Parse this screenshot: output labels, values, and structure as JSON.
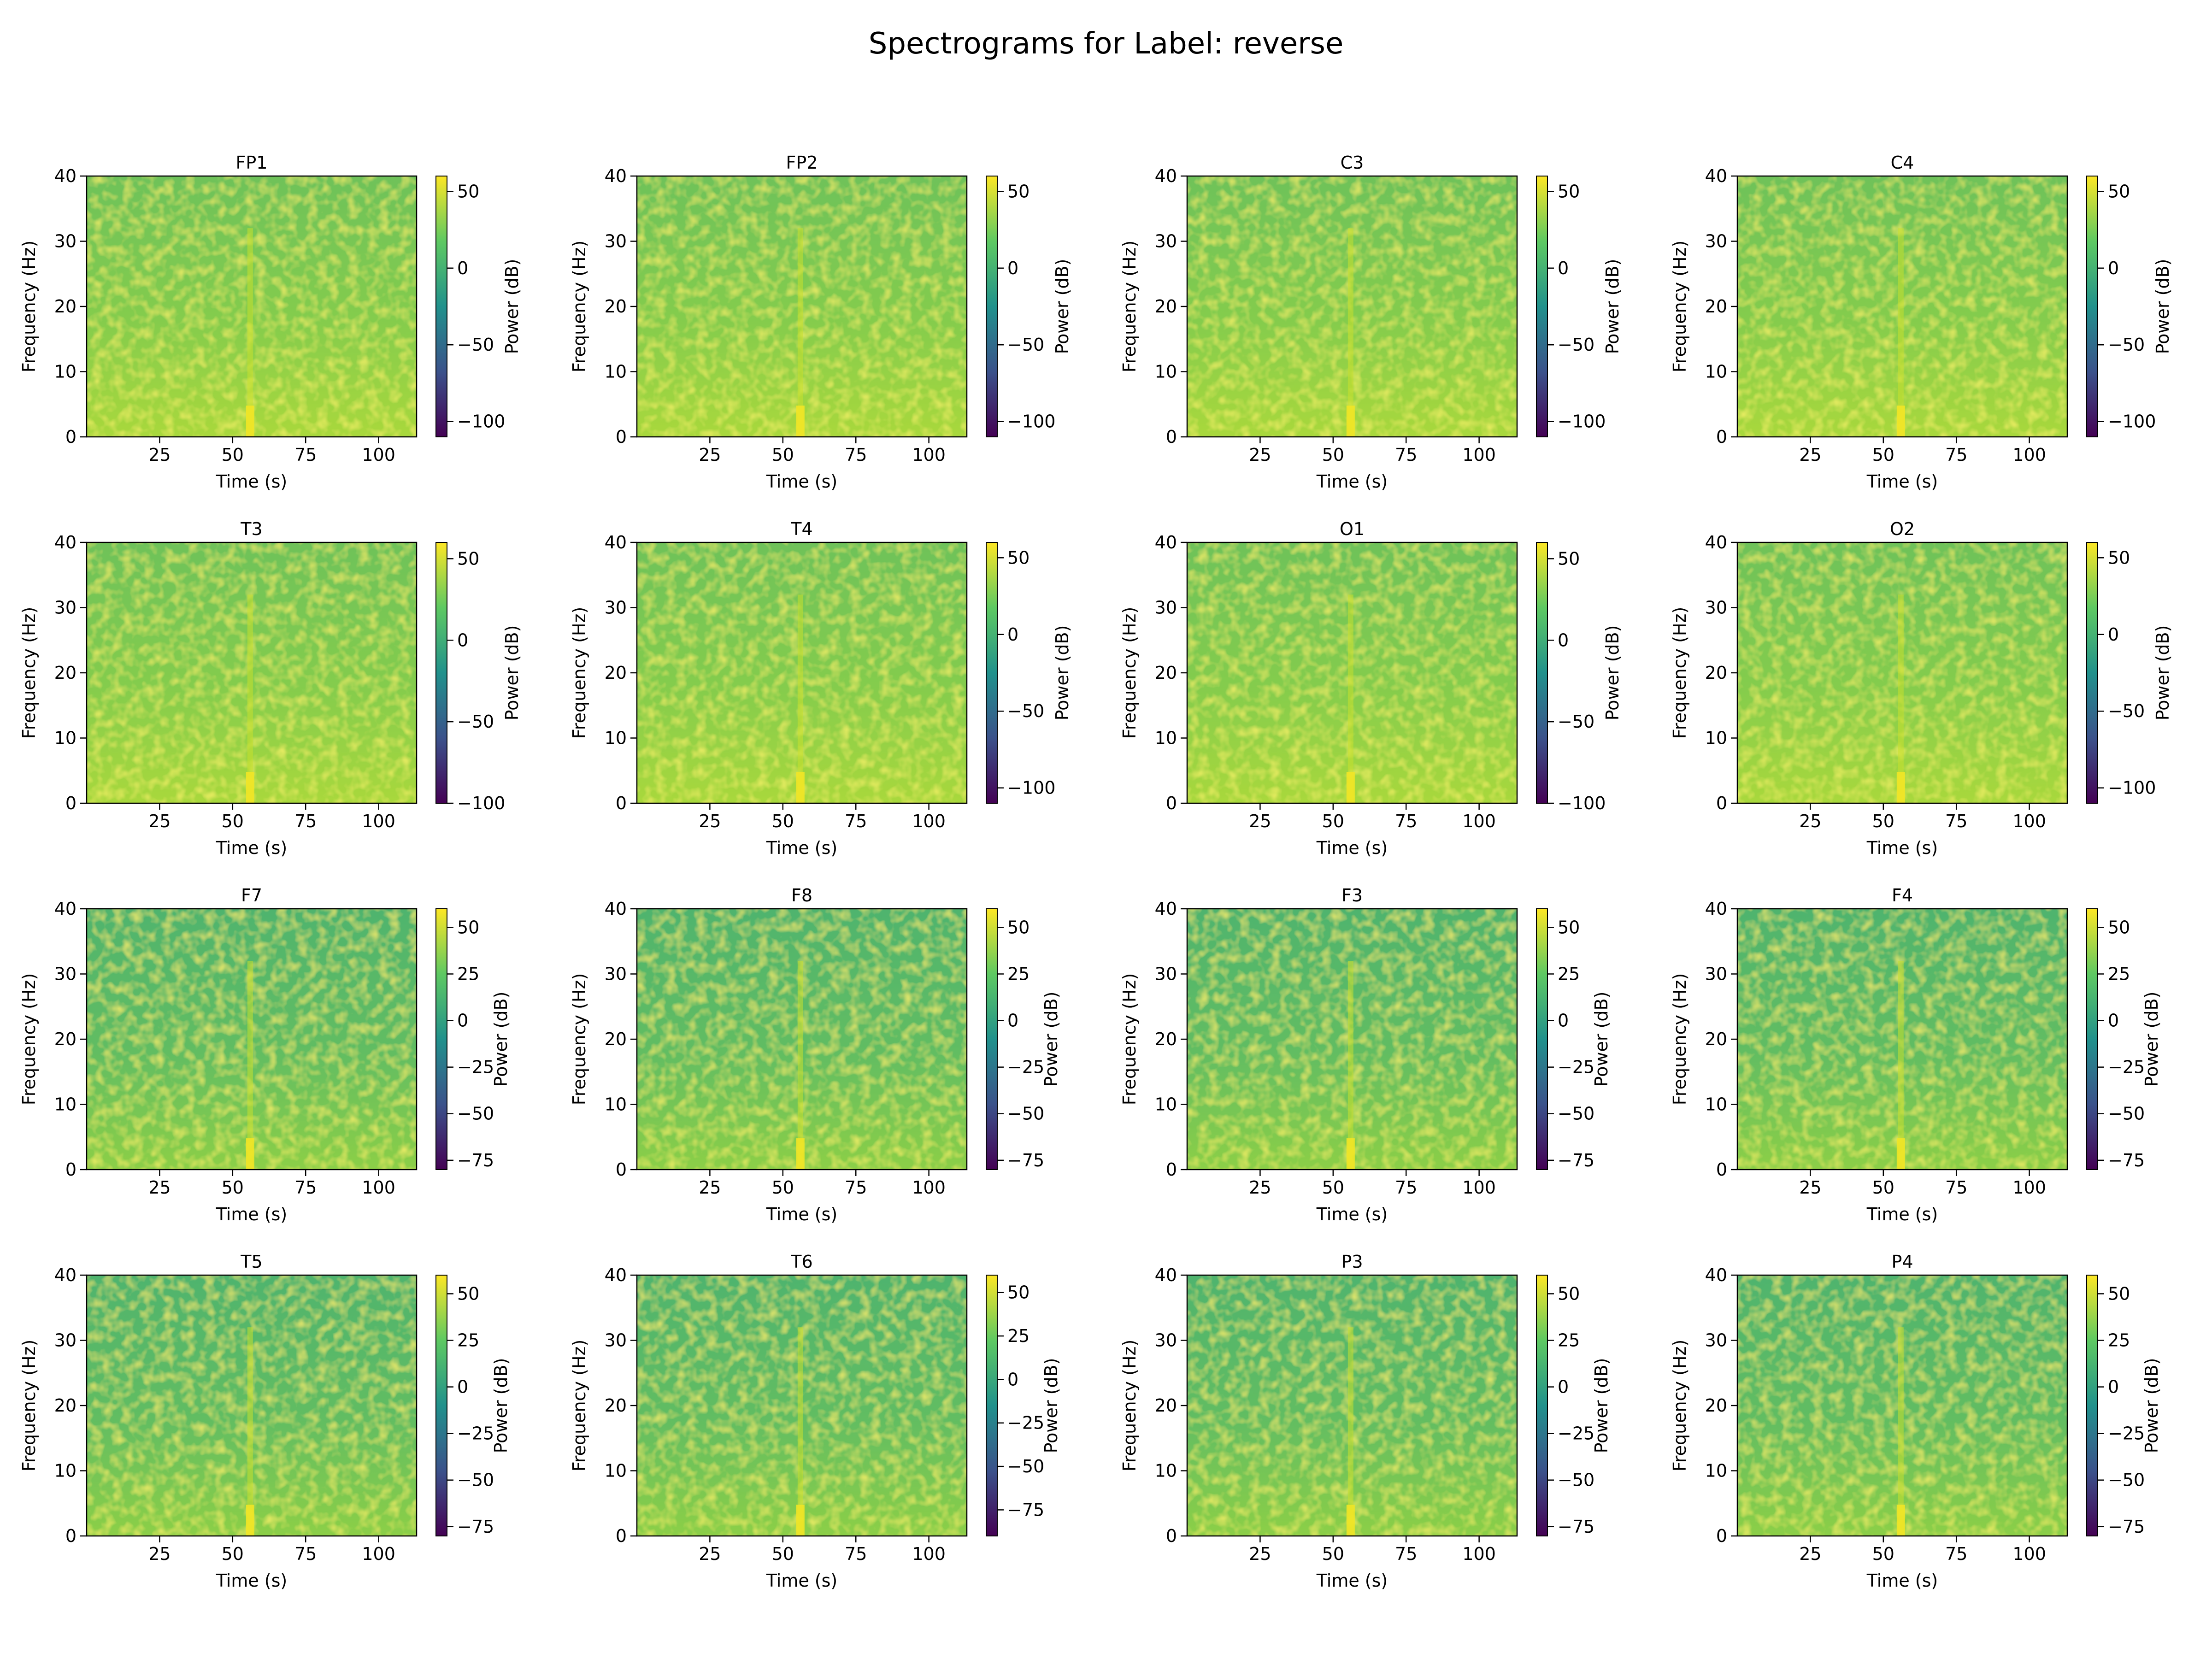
{
  "figure": {
    "title": "Spectrograms for Label: reverse"
  },
  "colormap": {
    "name": "viridis",
    "stops": [
      "#440154",
      "#3b528b",
      "#21918c",
      "#5ec962",
      "#fde725"
    ]
  },
  "chart_data": [
    {
      "type": "heatmap",
      "title": "FP1",
      "xlabel": "Time (s)",
      "ylabel": "Frequency (Hz)",
      "colorbar_label": "Power (dB)",
      "xlim": [
        0,
        113
      ],
      "ylim": [
        0,
        40
      ],
      "xticks": [
        25,
        50,
        75,
        100
      ],
      "yticks": [
        0,
        10,
        20,
        30,
        40
      ],
      "clim": [
        -110,
        60
      ],
      "colorbar_ticks": [
        50,
        0,
        -50,
        -100
      ],
      "feature": {
        "time": 56,
        "description": "bright vertical line"
      }
    },
    {
      "type": "heatmap",
      "title": "FP2",
      "xlabel": "Time (s)",
      "ylabel": "Frequency (Hz)",
      "colorbar_label": "Power (dB)",
      "xlim": [
        0,
        113
      ],
      "ylim": [
        0,
        40
      ],
      "xticks": [
        25,
        50,
        75,
        100
      ],
      "yticks": [
        0,
        10,
        20,
        30,
        40
      ],
      "clim": [
        -110,
        60
      ],
      "colorbar_ticks": [
        50,
        0,
        -50,
        -100
      ],
      "feature": {
        "time": 56,
        "description": "bright vertical line"
      }
    },
    {
      "type": "heatmap",
      "title": "C3",
      "xlabel": "Time (s)",
      "ylabel": "Frequency (Hz)",
      "colorbar_label": "Power (dB)",
      "xlim": [
        0,
        113
      ],
      "ylim": [
        0,
        40
      ],
      "xticks": [
        25,
        50,
        75,
        100
      ],
      "yticks": [
        0,
        10,
        20,
        30,
        40
      ],
      "clim": [
        -110,
        60
      ],
      "colorbar_ticks": [
        50,
        0,
        -50,
        -100
      ],
      "feature": {
        "time": 56,
        "description": "bright vertical line"
      }
    },
    {
      "type": "heatmap",
      "title": "C4",
      "xlabel": "Time (s)",
      "ylabel": "Frequency (Hz)",
      "colorbar_label": "Power (dB)",
      "xlim": [
        0,
        113
      ],
      "ylim": [
        0,
        40
      ],
      "xticks": [
        25,
        50,
        75,
        100
      ],
      "yticks": [
        0,
        10,
        20,
        30,
        40
      ],
      "clim": [
        -110,
        60
      ],
      "colorbar_ticks": [
        50,
        0,
        -50,
        -100
      ],
      "feature": {
        "time": 56,
        "description": "bright vertical line"
      }
    },
    {
      "type": "heatmap",
      "title": "T3",
      "xlabel": "Time (s)",
      "ylabel": "Frequency (Hz)",
      "colorbar_label": "Power (dB)",
      "xlim": [
        0,
        113
      ],
      "ylim": [
        0,
        40
      ],
      "xticks": [
        25,
        50,
        75,
        100
      ],
      "yticks": [
        0,
        10,
        20,
        30,
        40
      ],
      "clim": [
        -100,
        60
      ],
      "colorbar_ticks": [
        50,
        0,
        -50,
        -100
      ],
      "feature": {
        "time": 56,
        "description": "bright vertical line"
      }
    },
    {
      "type": "heatmap",
      "title": "T4",
      "xlabel": "Time (s)",
      "ylabel": "Frequency (Hz)",
      "colorbar_label": "Power (dB)",
      "xlim": [
        0,
        113
      ],
      "ylim": [
        0,
        40
      ],
      "xticks": [
        25,
        50,
        75,
        100
      ],
      "yticks": [
        0,
        10,
        20,
        30,
        40
      ],
      "clim": [
        -110,
        60
      ],
      "colorbar_ticks": [
        50,
        0,
        -50,
        -100
      ],
      "feature": {
        "time": 56,
        "description": "bright vertical line"
      }
    },
    {
      "type": "heatmap",
      "title": "O1",
      "xlabel": "Time (s)",
      "ylabel": "Frequency (Hz)",
      "colorbar_label": "Power (dB)",
      "xlim": [
        0,
        113
      ],
      "ylim": [
        0,
        40
      ],
      "xticks": [
        25,
        50,
        75,
        100
      ],
      "yticks": [
        0,
        10,
        20,
        30,
        40
      ],
      "clim": [
        -100,
        60
      ],
      "colorbar_ticks": [
        50,
        0,
        -50,
        -100
      ],
      "feature": {
        "time": 56,
        "description": "bright vertical line"
      }
    },
    {
      "type": "heatmap",
      "title": "O2",
      "xlabel": "Time (s)",
      "ylabel": "Frequency (Hz)",
      "colorbar_label": "Power (dB)",
      "xlim": [
        0,
        113
      ],
      "ylim": [
        0,
        40
      ],
      "xticks": [
        25,
        50,
        75,
        100
      ],
      "yticks": [
        0,
        10,
        20,
        30,
        40
      ],
      "clim": [
        -110,
        60
      ],
      "colorbar_ticks": [
        50,
        0,
        -50,
        -100
      ],
      "feature": {
        "time": 56,
        "description": "bright vertical line"
      }
    },
    {
      "type": "heatmap",
      "title": "F7",
      "xlabel": "Time (s)",
      "ylabel": "Frequency (Hz)",
      "colorbar_label": "Power (dB)",
      "xlim": [
        0,
        113
      ],
      "ylim": [
        0,
        40
      ],
      "xticks": [
        25,
        50,
        75,
        100
      ],
      "yticks": [
        0,
        10,
        20,
        30,
        40
      ],
      "clim": [
        -80,
        60
      ],
      "colorbar_ticks": [
        50,
        25,
        0,
        -25,
        -50,
        -75
      ],
      "feature": {
        "time": 56,
        "description": "bright vertical line"
      }
    },
    {
      "type": "heatmap",
      "title": "F8",
      "xlabel": "Time (s)",
      "ylabel": "Frequency (Hz)",
      "colorbar_label": "Power (dB)",
      "xlim": [
        0,
        113
      ],
      "ylim": [
        0,
        40
      ],
      "xticks": [
        25,
        50,
        75,
        100
      ],
      "yticks": [
        0,
        10,
        20,
        30,
        40
      ],
      "clim": [
        -80,
        60
      ],
      "colorbar_ticks": [
        50,
        25,
        0,
        -25,
        -50,
        -75
      ],
      "feature": {
        "time": 56,
        "description": "bright vertical line"
      }
    },
    {
      "type": "heatmap",
      "title": "F3",
      "xlabel": "Time (s)",
      "ylabel": "Frequency (Hz)",
      "colorbar_label": "Power (dB)",
      "xlim": [
        0,
        113
      ],
      "ylim": [
        0,
        40
      ],
      "xticks": [
        25,
        50,
        75,
        100
      ],
      "yticks": [
        0,
        10,
        20,
        30,
        40
      ],
      "clim": [
        -80,
        60
      ],
      "colorbar_ticks": [
        50,
        25,
        0,
        -25,
        -50,
        -75
      ],
      "feature": {
        "time": 56,
        "description": "bright vertical line"
      }
    },
    {
      "type": "heatmap",
      "title": "F4",
      "xlabel": "Time (s)",
      "ylabel": "Frequency (Hz)",
      "colorbar_label": "Power (dB)",
      "xlim": [
        0,
        113
      ],
      "ylim": [
        0,
        40
      ],
      "xticks": [
        25,
        50,
        75,
        100
      ],
      "yticks": [
        0,
        10,
        20,
        30,
        40
      ],
      "clim": [
        -80,
        60
      ],
      "colorbar_ticks": [
        50,
        25,
        0,
        -25,
        -50,
        -75
      ],
      "feature": {
        "time": 56,
        "description": "bright vertical line"
      }
    },
    {
      "type": "heatmap",
      "title": "T5",
      "xlabel": "Time (s)",
      "ylabel": "Frequency (Hz)",
      "colorbar_label": "Power (dB)",
      "xlim": [
        0,
        113
      ],
      "ylim": [
        0,
        40
      ],
      "xticks": [
        25,
        50,
        75,
        100
      ],
      "yticks": [
        0,
        10,
        20,
        30,
        40
      ],
      "clim": [
        -80,
        60
      ],
      "colorbar_ticks": [
        50,
        25,
        0,
        -25,
        -50,
        -75
      ],
      "feature": {
        "time": 56,
        "description": "bright vertical line"
      }
    },
    {
      "type": "heatmap",
      "title": "T6",
      "xlabel": "Time (s)",
      "ylabel": "Frequency (Hz)",
      "colorbar_label": "Power (dB)",
      "xlim": [
        0,
        113
      ],
      "ylim": [
        0,
        40
      ],
      "xticks": [
        25,
        50,
        75,
        100
      ],
      "yticks": [
        0,
        10,
        20,
        30,
        40
      ],
      "clim": [
        -90,
        60
      ],
      "colorbar_ticks": [
        50,
        25,
        0,
        -25,
        -50,
        -75
      ],
      "feature": {
        "time": 56,
        "description": "bright vertical line"
      }
    },
    {
      "type": "heatmap",
      "title": "P3",
      "xlabel": "Time (s)",
      "ylabel": "Frequency (Hz)",
      "colorbar_label": "Power (dB)",
      "xlim": [
        0,
        113
      ],
      "ylim": [
        0,
        40
      ],
      "xticks": [
        25,
        50,
        75,
        100
      ],
      "yticks": [
        0,
        10,
        20,
        30,
        40
      ],
      "clim": [
        -80,
        60
      ],
      "colorbar_ticks": [
        50,
        25,
        0,
        -25,
        -50,
        -75
      ],
      "feature": {
        "time": 56,
        "description": "bright vertical line"
      }
    },
    {
      "type": "heatmap",
      "title": "P4",
      "xlabel": "Time (s)",
      "ylabel": "Frequency (Hz)",
      "colorbar_label": "Power (dB)",
      "xlim": [
        0,
        113
      ],
      "ylim": [
        0,
        40
      ],
      "xticks": [
        25,
        50,
        75,
        100
      ],
      "yticks": [
        0,
        10,
        20,
        30,
        40
      ],
      "clim": [
        -80,
        60
      ],
      "colorbar_ticks": [
        50,
        25,
        0,
        -25,
        -50,
        -75
      ],
      "feature": {
        "time": 56,
        "description": "bright vertical line"
      }
    }
  ]
}
